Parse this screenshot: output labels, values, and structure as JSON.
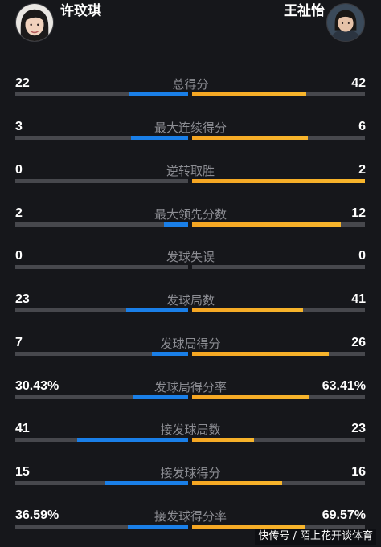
{
  "players": {
    "left": {
      "name": "许玟琪",
      "color": "#1a7fe8"
    },
    "right": {
      "name": "王祉怡",
      "color": "#f5a623"
    }
  },
  "stats": [
    {
      "label": "总得分",
      "left": "22",
      "right": "42",
      "left_fraction": 0.34,
      "right_fraction": 0.66
    },
    {
      "label": "最大连续得分",
      "left": "3",
      "right": "6",
      "left_fraction": 0.33,
      "right_fraction": 0.67
    },
    {
      "label": "逆转取胜",
      "left": "0",
      "right": "2",
      "left_fraction": 0.0,
      "right_fraction": 1.0
    },
    {
      "label": "最大领先分数",
      "left": "2",
      "right": "12",
      "left_fraction": 0.14,
      "right_fraction": 0.86
    },
    {
      "label": "发球失误",
      "left": "0",
      "right": "0",
      "left_fraction": 0.0,
      "right_fraction": 0.0
    },
    {
      "label": "发球局数",
      "left": "23",
      "right": "41",
      "left_fraction": 0.36,
      "right_fraction": 0.64
    },
    {
      "label": "发球局得分",
      "left": "7",
      "right": "26",
      "left_fraction": 0.21,
      "right_fraction": 0.79
    },
    {
      "label": "发球局得分率",
      "left": "30.43%",
      "right": "63.41%",
      "left_fraction": 0.32,
      "right_fraction": 0.68
    },
    {
      "label": "接发球局数",
      "left": "41",
      "right": "23",
      "left_fraction": 0.64,
      "right_fraction": 0.36
    },
    {
      "label": "接发球得分",
      "left": "15",
      "right": "16",
      "left_fraction": 0.48,
      "right_fraction": 0.52
    },
    {
      "label": "接发球得分率",
      "left": "36.59%",
      "right": "69.57%",
      "left_fraction": 0.35,
      "right_fraction": 0.65
    }
  ],
  "watermark": "快传号 / 陌上花开谈体育"
}
